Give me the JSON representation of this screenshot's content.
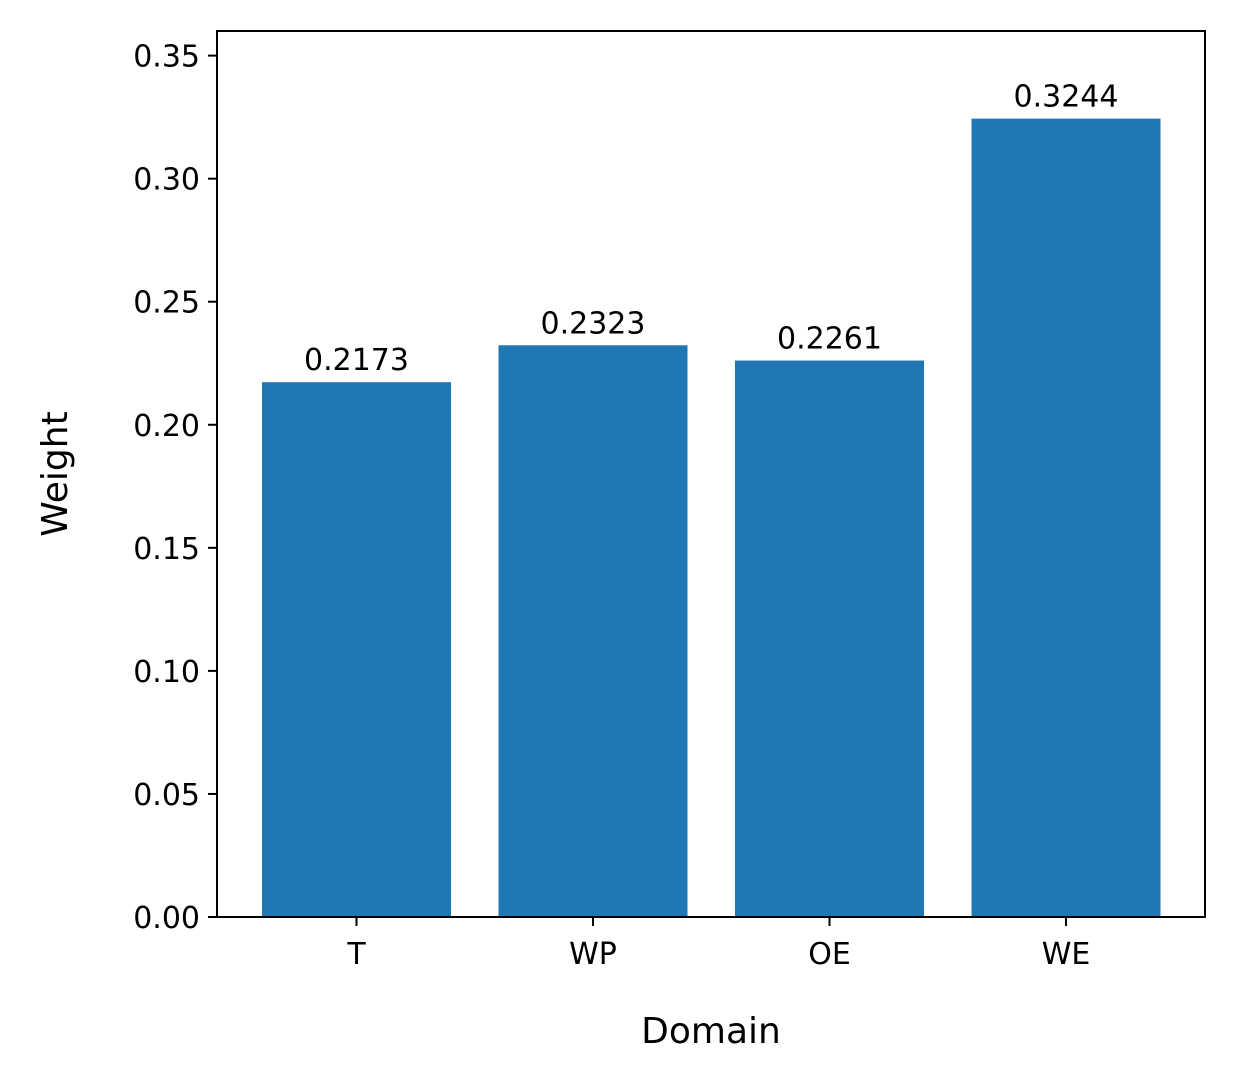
{
  "chart_data": {
    "type": "bar",
    "categories": [
      "T",
      "WP",
      "OE",
      "WE"
    ],
    "values": [
      0.2173,
      0.2323,
      0.2261,
      0.3244
    ],
    "data_labels": [
      "0.2173",
      "0.2323",
      "0.2261",
      "0.3244"
    ],
    "xlabel": "Domain",
    "ylabel": "Weight",
    "ylim": [
      0,
      0.36
    ],
    "yticks": [
      0.0,
      0.05,
      0.1,
      0.15,
      0.2,
      0.25,
      0.3,
      0.35
    ],
    "ytick_labels": [
      "0.00",
      "0.05",
      "0.10",
      "0.15",
      "0.20",
      "0.25",
      "0.30",
      "0.35"
    ],
    "grid": false,
    "bar_color": "#1f77b4"
  }
}
